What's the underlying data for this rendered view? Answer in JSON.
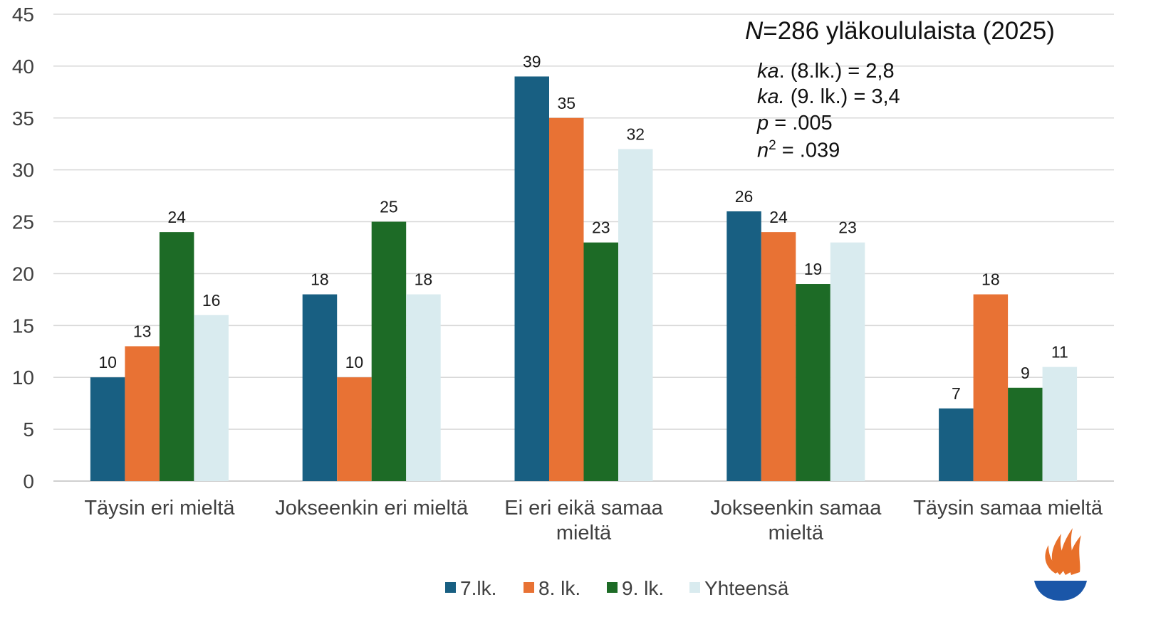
{
  "chart_data": {
    "type": "bar",
    "categories": [
      "Täysin eri mieltä",
      "Jokseenkin eri mieltä",
      "Ei eri eikä samaa mieltä",
      "Jokseenkin samaa mieltä",
      "Täysin samaa mieltä"
    ],
    "category_lines": [
      [
        "Täysin eri mieltä"
      ],
      [
        "Jokseenkin eri mieltä"
      ],
      [
        "Ei eri eikä samaa",
        "mieltä"
      ],
      [
        "Jokseenkin samaa",
        "mieltä"
      ],
      [
        "Täysin samaa mieltä"
      ]
    ],
    "series": [
      {
        "name": "7.lk.",
        "color": "#185f82",
        "values": [
          10,
          18,
          39,
          26,
          7
        ]
      },
      {
        "name": "8. lk.",
        "color": "#e87234",
        "values": [
          13,
          10,
          35,
          24,
          18
        ]
      },
      {
        "name": "9. lk.",
        "color": "#1d6b26",
        "values": [
          24,
          25,
          23,
          19,
          9
        ]
      },
      {
        "name": "Yhteensä",
        "color": "#d9ebef",
        "values": [
          16,
          18,
          32,
          23,
          11
        ]
      }
    ],
    "ylim": [
      0,
      45
    ],
    "yticks": [
      0,
      5,
      10,
      15,
      20,
      25,
      30,
      35,
      40,
      45
    ],
    "grid": true,
    "legend": "bottom"
  },
  "annotations": {
    "n_italic": "N",
    "n_rest": "=286 yläkoululaista (2025)",
    "ka8_italic": "ka",
    "ka8_rest": ". (8.lk.) = 2,8",
    "ka9_italic": "ka.",
    "ka9_rest": " (9. lk.) = 3,4",
    "p_italic": "p",
    "p_rest": " = .005",
    "eta_italic": "n",
    "eta_sup": "2",
    "eta_rest": " = .039"
  },
  "logo": {
    "name": "flame-logo",
    "flame_color": "#e8702a",
    "bowl_color": "#1a56a8"
  }
}
